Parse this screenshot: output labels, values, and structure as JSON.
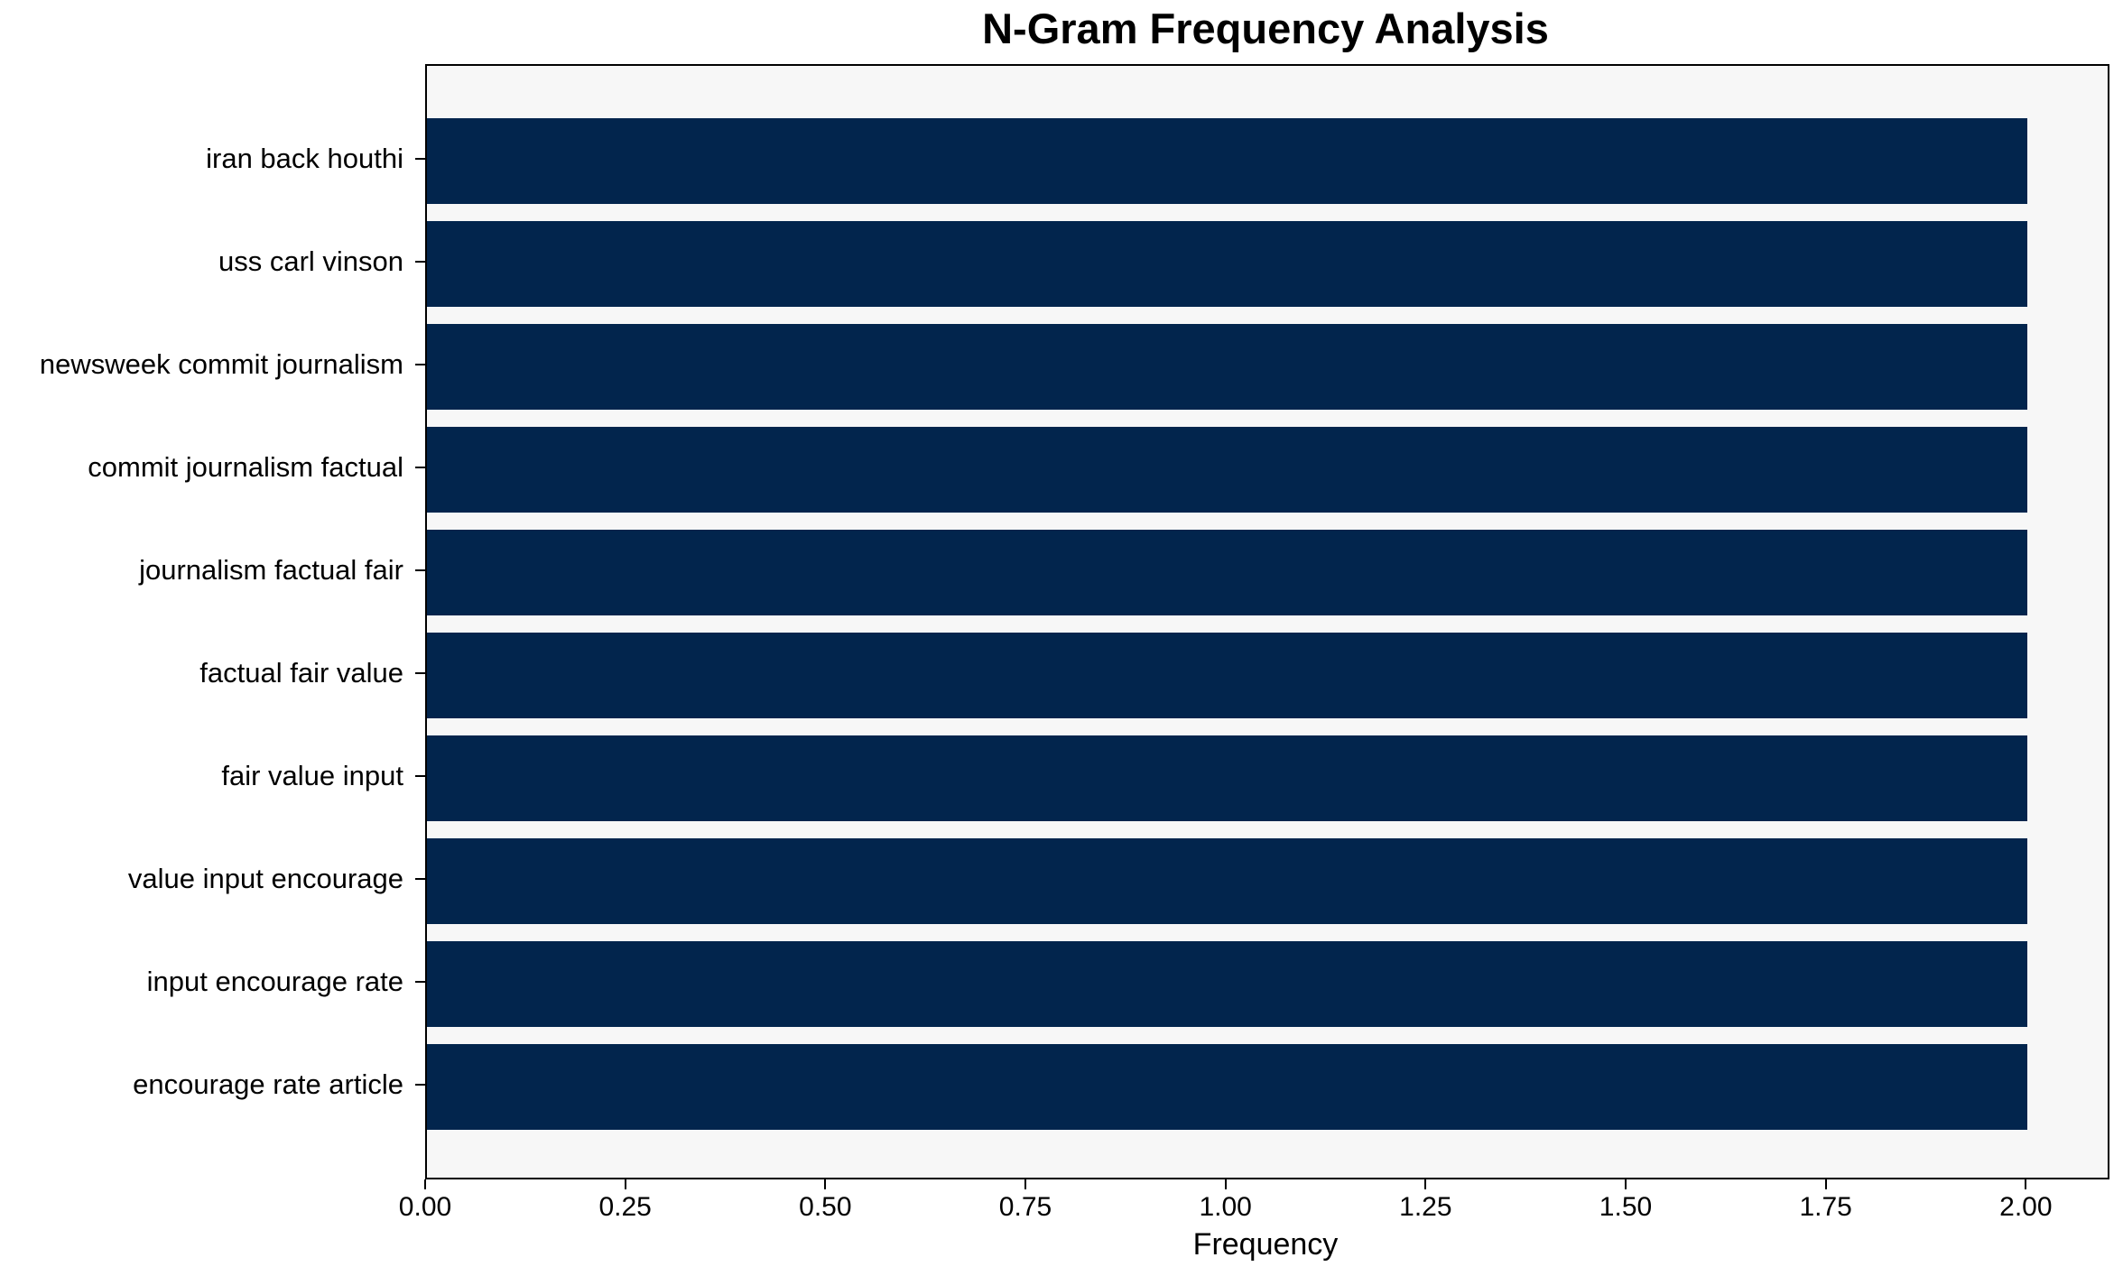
{
  "chart_data": {
    "type": "bar",
    "orientation": "horizontal",
    "title": "N-Gram Frequency Analysis",
    "xlabel": "Frequency",
    "ylabel": "",
    "categories": [
      "iran back houthi",
      "uss carl vinson",
      "newsweek commit journalism",
      "commit journalism factual",
      "journalism factual fair",
      "factual fair value",
      "fair value input",
      "value input encourage",
      "input encourage rate",
      "encourage rate article"
    ],
    "values": [
      2.0,
      2.0,
      2.0,
      2.0,
      2.0,
      2.0,
      2.0,
      2.0,
      2.0,
      2.0
    ],
    "xlim": [
      0,
      2.1
    ],
    "xticks": {
      "values": [
        0.0,
        0.25,
        0.5,
        0.75,
        1.0,
        1.25,
        1.5,
        1.75,
        2.0
      ],
      "labels": [
        "0.00",
        "0.25",
        "0.50",
        "0.75",
        "1.00",
        "1.25",
        "1.50",
        "1.75",
        "2.00"
      ]
    },
    "grid": false,
    "legend": null,
    "colors": {
      "bar": "#02254d",
      "plot_background": "#f7f7f7",
      "figure_background": "#ffffff",
      "spine": "#000000",
      "text": "#000000"
    }
  }
}
